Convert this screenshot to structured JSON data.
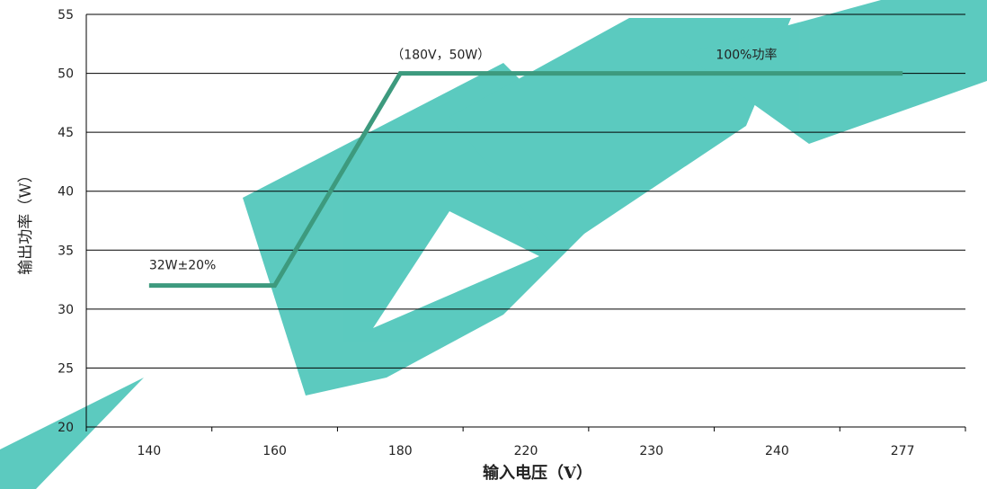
{
  "chart_data": {
    "type": "line",
    "title": "",
    "xlabel": "输入电压（V）",
    "ylabel": "输出功率（W）",
    "categories": [
      "140",
      "160",
      "180",
      "220",
      "230",
      "240",
      "277"
    ],
    "ylim": [
      20,
      55
    ],
    "y_ticks": [
      "20",
      "25",
      "30",
      "35",
      "40",
      "45",
      "50",
      "55"
    ],
    "grid": "horizontal",
    "series": [
      {
        "values": [
          32,
          32,
          50,
          50,
          50,
          50,
          50
        ],
        "color": "#3d9a7e"
      }
    ],
    "annotations": [
      {
        "text": "32W±20%",
        "x": "140",
        "y": 32
      },
      {
        "text": "（180V，50W）",
        "x": "180",
        "y": 50
      },
      {
        "text": "100%功率",
        "x": "240",
        "y": 50
      }
    ]
  },
  "colors": {
    "line": "#3d9a7e",
    "grid": "#000000",
    "watermark": "#3fc1b4"
  }
}
